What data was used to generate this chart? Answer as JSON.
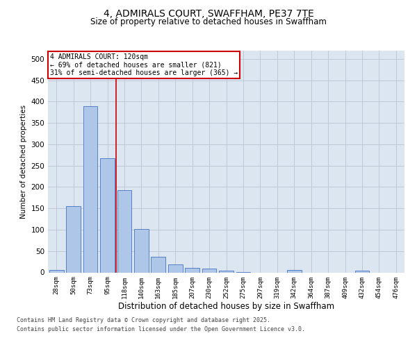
{
  "title_line1": "4, ADMIRALS COURT, SWAFFHAM, PE37 7TE",
  "title_line2": "Size of property relative to detached houses in Swaffham",
  "xlabel": "Distribution of detached houses by size in Swaffham",
  "ylabel": "Number of detached properties",
  "categories": [
    "28sqm",
    "50sqm",
    "73sqm",
    "95sqm",
    "118sqm",
    "140sqm",
    "163sqm",
    "185sqm",
    "207sqm",
    "230sqm",
    "252sqm",
    "275sqm",
    "297sqm",
    "319sqm",
    "342sqm",
    "364sqm",
    "387sqm",
    "409sqm",
    "432sqm",
    "454sqm",
    "476sqm"
  ],
  "values": [
    6,
    155,
    390,
    268,
    193,
    102,
    36,
    19,
    10,
    9,
    4,
    1,
    0,
    0,
    5,
    0,
    0,
    0,
    4,
    0,
    0
  ],
  "bar_color": "#aec6e8",
  "bar_edge_color": "#4472c4",
  "grid_color": "#c0c8d8",
  "background_color": "#dce6f0",
  "vline_index": 3.5,
  "annotation_text": "4 ADMIRALS COURT: 120sqm\n← 69% of detached houses are smaller (821)\n31% of semi-detached houses are larger (365) →",
  "annotation_box_color": "#ffffff",
  "annotation_box_edge": "#cc0000",
  "vline_color": "#cc0000",
  "footer_line1": "Contains HM Land Registry data © Crown copyright and database right 2025.",
  "footer_line2": "Contains public sector information licensed under the Open Government Licence v3.0.",
  "ylim": [
    0,
    520
  ],
  "yticks": [
    0,
    50,
    100,
    150,
    200,
    250,
    300,
    350,
    400,
    450,
    500
  ]
}
